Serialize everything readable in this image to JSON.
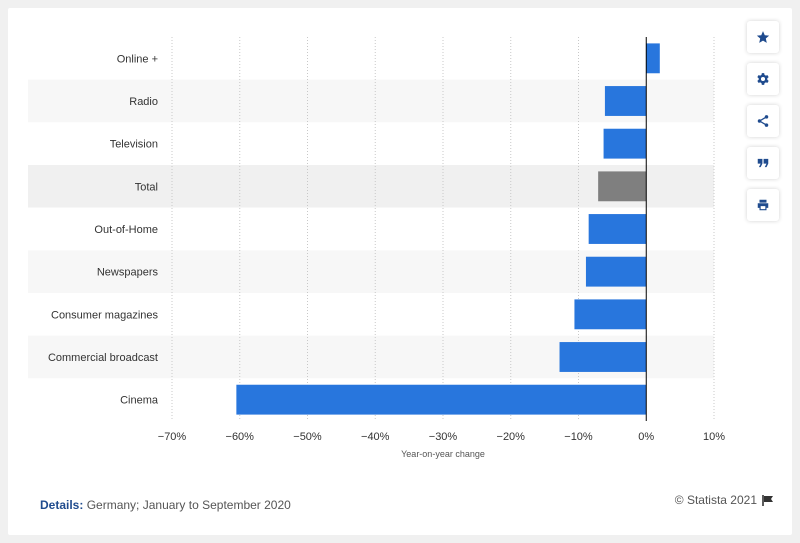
{
  "chart_data": {
    "type": "bar",
    "orientation": "horizontal",
    "categories": [
      "Online +",
      "Radio",
      "Television",
      "Total",
      "Out-of-Home",
      "Newspapers",
      "Consumer magazines",
      "Commercial broadcast",
      "Cinema"
    ],
    "values": [
      2.0,
      -6.1,
      -6.3,
      -7.1,
      -8.5,
      -8.9,
      -10.6,
      -12.8,
      -60.5
    ],
    "highlight_category": "Total",
    "colors": {
      "bar": "#2876dd",
      "highlight": "#7f7f7f"
    },
    "xlim": [
      -70,
      10
    ],
    "x_ticks": [
      -70,
      -60,
      -50,
      -40,
      -30,
      -20,
      -10,
      0,
      10
    ],
    "x_tick_labels": [
      "−70%",
      "−60%",
      "−50%",
      "−40%",
      "−30%",
      "−20%",
      "−10%",
      "0%",
      "10%"
    ],
    "xlabel": "Year-on-year change",
    "grid": true,
    "legend": "none"
  },
  "footer": {
    "details_label": "Details:",
    "details_text": "Germany; January to September 2020",
    "copyright": "© Statista 2021"
  },
  "toolbar": {
    "icons": [
      "star-icon",
      "gear-icon",
      "share-icon",
      "quote-icon",
      "print-icon"
    ]
  }
}
